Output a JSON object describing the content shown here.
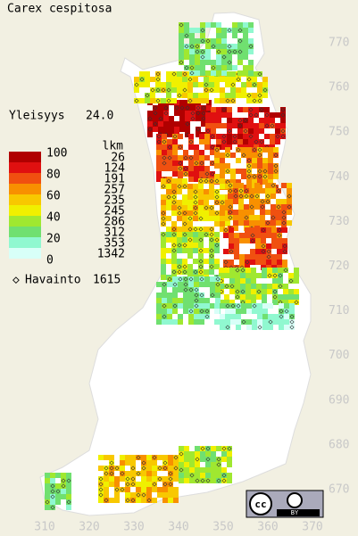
{
  "title": "Carex cespitosa",
  "frequency": {
    "label": "Yleisyys",
    "value": "24.0"
  },
  "legend": {
    "scale": [
      100,
      80,
      60,
      40,
      20,
      0
    ],
    "colors": [
      "#b00000",
      "#e01010",
      "#f05010",
      "#f89000",
      "#f8c800",
      "#f0f000",
      "#a0e830",
      "#70e070",
      "#90f8d0",
      "#d8fff8"
    ],
    "count_header": "lkm",
    "counts": [
      26,
      124,
      191,
      257,
      235,
      245,
      286,
      312,
      353,
      1342
    ]
  },
  "observations": {
    "label": "Havainto",
    "count": 1615
  },
  "axes": {
    "y_labels": [
      770,
      760,
      750,
      740,
      730,
      720,
      710,
      700,
      690,
      680,
      670
    ],
    "x_labels": [
      310,
      320,
      330,
      340,
      350,
      360,
      370
    ]
  },
  "badge": {
    "by": "BY"
  }
}
